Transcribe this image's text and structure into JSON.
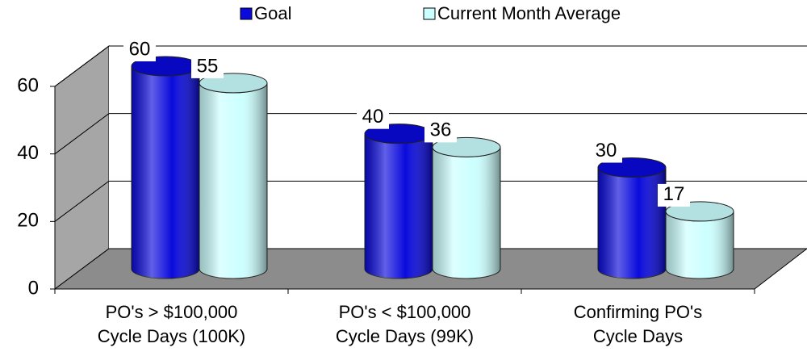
{
  "chart_data": {
    "type": "bar3d",
    "categories": [
      [
        "PO's > $100,000",
        "Cycle Days (100K)"
      ],
      [
        "PO's < $100,000",
        "Cycle Days (99K)"
      ],
      [
        "Confirming PO's",
        "Cycle Days"
      ]
    ],
    "series": [
      {
        "name": "Goal",
        "color": "#0a0adc",
        "values": [
          60,
          40,
          30
        ]
      },
      {
        "name": "Current Month Average",
        "color": "#ccffff",
        "values": [
          55,
          36,
          17
        ]
      }
    ],
    "ylim": [
      0,
      60
    ],
    "yticks": [
      0,
      20,
      40,
      60
    ],
    "grid": true,
    "legend": "top"
  }
}
